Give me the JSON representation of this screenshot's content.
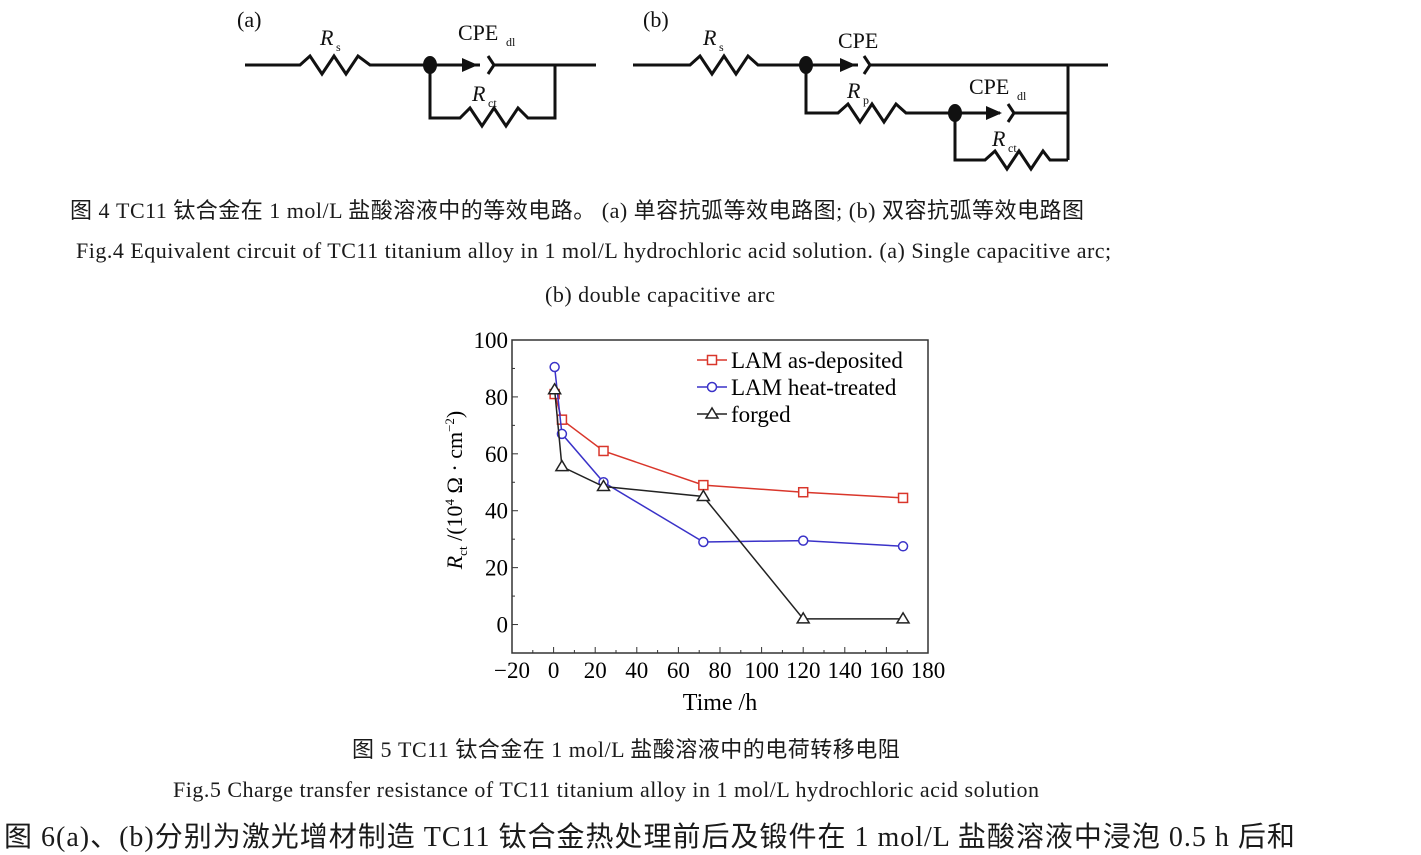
{
  "fig4": {
    "panel_a": {
      "label": "(a)",
      "rs": "R",
      "rs_sub": "s",
      "cpe": "CPE",
      "cpe_sub": "dl",
      "rct": "R",
      "rct_sub": "ct"
    },
    "panel_b": {
      "label": "(b)",
      "rs": "R",
      "rs_sub": "s",
      "cpe": "CPE",
      "rp": "R",
      "rp_sub": "p",
      "cpe_dl": "CPE",
      "cpe_dl_sub": "dl",
      "rct": "R",
      "rct_sub": "ct"
    },
    "caption_cn": "图 4  TC11 钛合金在 1 mol/L 盐酸溶液中的等效电路。 (a) 单容抗弧等效电路图; (b) 双容抗弧等效电路图",
    "caption_en_1": "Fig.4  Equivalent circuit of TC11 titanium alloy in 1 mol/L hydrochloric acid solution. (a) Single capacitive arc;",
    "caption_en_2": "(b) double capacitive arc"
  },
  "fig5": {
    "caption_cn": "图 5  TC11 钛合金在 1 mol/L 盐酸溶液中的电荷转移电阻",
    "caption_en": "Fig.5  Charge transfer resistance of TC11 titanium alloy in 1 mol/L hydrochloric acid solution"
  },
  "body_text": "图 6(a)、(b)分别为激光增材制造 TC11 钛合金热处理前后及锻件在 1 mol/L 盐酸溶液中浸泡 0.5 h 后和",
  "chart_data": {
    "type": "line",
    "xlabel": "Time /h",
    "ylabel": "R_ct /(10^4 Ω · cm^-2)",
    "ylabel_main": "R",
    "ylabel_sub": "ct",
    "ylabel_rest": " /(10",
    "ylabel_exp": "4",
    "ylabel_unit": " Ω · cm",
    "ylabel_unit_exp": "−2",
    "ylabel_close": ")",
    "xlim": [
      -20,
      180
    ],
    "ylim": [
      -10,
      100
    ],
    "xticks": [
      -20,
      0,
      20,
      40,
      60,
      80,
      100,
      120,
      140,
      160,
      180
    ],
    "yticks": [
      0,
      20,
      40,
      60,
      80,
      100
    ],
    "legend_position": "top-right",
    "grid": false,
    "series": [
      {
        "name": "LAM as-deposited",
        "color": "#d9362b",
        "marker": "square",
        "x": [
          0.5,
          4,
          24,
          72,
          120,
          168
        ],
        "y": [
          81,
          72,
          61,
          49,
          46.5,
          44.5
        ]
      },
      {
        "name": "LAM heat-treated",
        "color": "#3a32c8",
        "marker": "circle",
        "x": [
          0.5,
          4,
          24,
          72,
          120,
          168
        ],
        "y": [
          90.5,
          67,
          50,
          29,
          29.5,
          27.5
        ]
      },
      {
        "name": "forged",
        "color": "#222222",
        "marker": "triangle",
        "x": [
          0.5,
          4,
          24,
          72,
          120,
          168
        ],
        "y": [
          82.5,
          55.5,
          48.5,
          45,
          2,
          2
        ]
      }
    ]
  }
}
